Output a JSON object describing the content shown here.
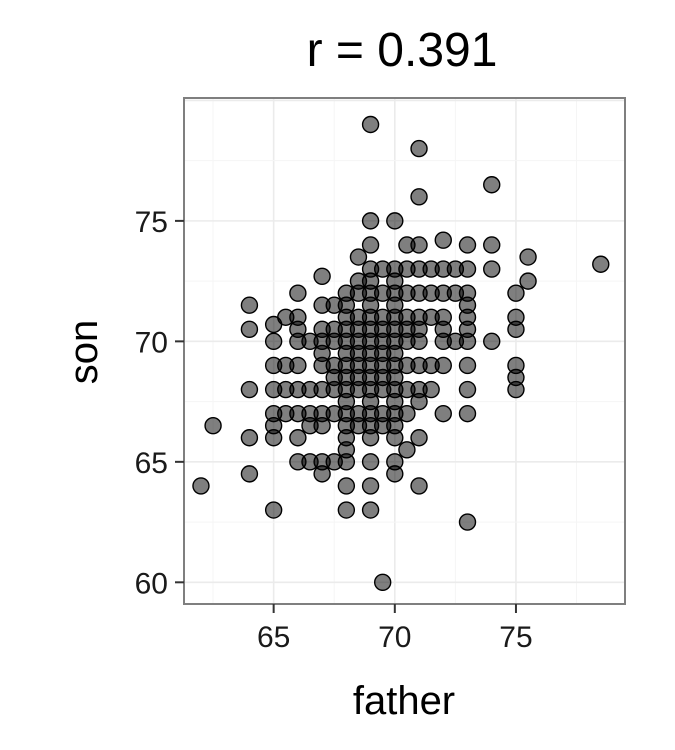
{
  "chart_data": {
    "type": "scatter",
    "title": "r = 0.391",
    "xlabel": "father",
    "ylabel": "son",
    "xlim": [
      61.3,
      79.5
    ],
    "ylim": [
      59.1,
      80.1
    ],
    "xticks": [
      65,
      70,
      75
    ],
    "yticks": [
      60,
      65,
      70,
      75
    ],
    "xtick_labels": [
      "65",
      "70",
      "75"
    ],
    "ytick_labels": [
      "60",
      "65",
      "70",
      "75"
    ],
    "grid": true,
    "point_color": "#000000",
    "point_opacity": 0.5,
    "points": [
      [
        62,
        64
      ],
      [
        62.5,
        66.5
      ],
      [
        64,
        71.5
      ],
      [
        64,
        70.5
      ],
      [
        64,
        68
      ],
      [
        64,
        66
      ],
      [
        64,
        64.5
      ],
      [
        65,
        70.7
      ],
      [
        65,
        70
      ],
      [
        65,
        69
      ],
      [
        65,
        68
      ],
      [
        65,
        67
      ],
      [
        65,
        66.5
      ],
      [
        65,
        66
      ],
      [
        65,
        63
      ],
      [
        65.5,
        71
      ],
      [
        65.5,
        69
      ],
      [
        65.5,
        68
      ],
      [
        65.5,
        67
      ],
      [
        66,
        72
      ],
      [
        66,
        71
      ],
      [
        66,
        70.5
      ],
      [
        66,
        70
      ],
      [
        66,
        69
      ],
      [
        66,
        68
      ],
      [
        66,
        67
      ],
      [
        66,
        66
      ],
      [
        66,
        65
      ],
      [
        66.5,
        70
      ],
      [
        66.5,
        68
      ],
      [
        66.5,
        67
      ],
      [
        66.5,
        66.5
      ],
      [
        66.5,
        65
      ],
      [
        67,
        72.7
      ],
      [
        67,
        71.5
      ],
      [
        67,
        70.5
      ],
      [
        67,
        70
      ],
      [
        67,
        69.5
      ],
      [
        67,
        69
      ],
      [
        67,
        68
      ],
      [
        67,
        67
      ],
      [
        67,
        66.5
      ],
      [
        67,
        65
      ],
      [
        67,
        64.5
      ],
      [
        67.5,
        71.5
      ],
      [
        67.5,
        70.5
      ],
      [
        67.5,
        70
      ],
      [
        67.5,
        69
      ],
      [
        67.5,
        68.5
      ],
      [
        67.5,
        68
      ],
      [
        67.5,
        67
      ],
      [
        67.5,
        65
      ],
      [
        68,
        72
      ],
      [
        68,
        71.5
      ],
      [
        68,
        71
      ],
      [
        68,
        70.5
      ],
      [
        68,
        70
      ],
      [
        68,
        69.5
      ],
      [
        68,
        69
      ],
      [
        68,
        68.5
      ],
      [
        68,
        68
      ],
      [
        68,
        67.5
      ],
      [
        68,
        67
      ],
      [
        68,
        66.5
      ],
      [
        68,
        66
      ],
      [
        68,
        65.5
      ],
      [
        68,
        65
      ],
      [
        68,
        64
      ],
      [
        68,
        63
      ],
      [
        68.5,
        73.5
      ],
      [
        68.5,
        72.5
      ],
      [
        68.5,
        72
      ],
      [
        68.5,
        71
      ],
      [
        68.5,
        70.5
      ],
      [
        68.5,
        70
      ],
      [
        68.5,
        69.5
      ],
      [
        68.5,
        69
      ],
      [
        68.5,
        68.5
      ],
      [
        68.5,
        68
      ],
      [
        68.5,
        67
      ],
      [
        68.5,
        66.5
      ],
      [
        69,
        79
      ],
      [
        69,
        75
      ],
      [
        69,
        74
      ],
      [
        69,
        73
      ],
      [
        69,
        72.5
      ],
      [
        69,
        72
      ],
      [
        69,
        71.5
      ],
      [
        69,
        71
      ],
      [
        69,
        70.5
      ],
      [
        69,
        70
      ],
      [
        69,
        69.5
      ],
      [
        69,
        69
      ],
      [
        69,
        68.5
      ],
      [
        69,
        68
      ],
      [
        69,
        67.5
      ],
      [
        69,
        67
      ],
      [
        69,
        66.5
      ],
      [
        69,
        66
      ],
      [
        69,
        65
      ],
      [
        69,
        64
      ],
      [
        69,
        63
      ],
      [
        69.5,
        73
      ],
      [
        69.5,
        72
      ],
      [
        69.5,
        71
      ],
      [
        69.5,
        70.5
      ],
      [
        69.5,
        70
      ],
      [
        69.5,
        69.5
      ],
      [
        69.5,
        69
      ],
      [
        69.5,
        68.5
      ],
      [
        69.5,
        68
      ],
      [
        69.5,
        67
      ],
      [
        69.5,
        66.5
      ],
      [
        69.5,
        60
      ],
      [
        70,
        75
      ],
      [
        70,
        73
      ],
      [
        70,
        72.5
      ],
      [
        70,
        72
      ],
      [
        70,
        71.5
      ],
      [
        70,
        71
      ],
      [
        70,
        70.5
      ],
      [
        70,
        70
      ],
      [
        70,
        69.5
      ],
      [
        70,
        69
      ],
      [
        70,
        68.5
      ],
      [
        70,
        68
      ],
      [
        70,
        67.5
      ],
      [
        70,
        67
      ],
      [
        70,
        66.5
      ],
      [
        70,
        66
      ],
      [
        70,
        65
      ],
      [
        70,
        64.5
      ],
      [
        70.5,
        74
      ],
      [
        70.5,
        73
      ],
      [
        70.5,
        72
      ],
      [
        70.5,
        71
      ],
      [
        70.5,
        70.5
      ],
      [
        70.5,
        70
      ],
      [
        70.5,
        69
      ],
      [
        70.5,
        68
      ],
      [
        70.5,
        67
      ],
      [
        70.5,
        65.5
      ],
      [
        71,
        78
      ],
      [
        71,
        76
      ],
      [
        71,
        74
      ],
      [
        71,
        73
      ],
      [
        71,
        72
      ],
      [
        71,
        71
      ],
      [
        71,
        70.5
      ],
      [
        71,
        70
      ],
      [
        71,
        69
      ],
      [
        71,
        68
      ],
      [
        71,
        67.5
      ],
      [
        71,
        66
      ],
      [
        71,
        64
      ],
      [
        71.5,
        73
      ],
      [
        71.5,
        72
      ],
      [
        71.5,
        71
      ],
      [
        71.5,
        69
      ],
      [
        71.5,
        68
      ],
      [
        72,
        74.2
      ],
      [
        72,
        73
      ],
      [
        72,
        72
      ],
      [
        72,
        71
      ],
      [
        72,
        70.5
      ],
      [
        72,
        70
      ],
      [
        72,
        69
      ],
      [
        72,
        67
      ],
      [
        72.5,
        73
      ],
      [
        72.5,
        72
      ],
      [
        72.5,
        70
      ],
      [
        73,
        74
      ],
      [
        73,
        73
      ],
      [
        73,
        72
      ],
      [
        73,
        71.5
      ],
      [
        73,
        71
      ],
      [
        73,
        70.5
      ],
      [
        73,
        70
      ],
      [
        73,
        69
      ],
      [
        73,
        68
      ],
      [
        73,
        67
      ],
      [
        73,
        62.5
      ],
      [
        74,
        76.5
      ],
      [
        74,
        74
      ],
      [
        74,
        73
      ],
      [
        74,
        70
      ],
      [
        75,
        72
      ],
      [
        75,
        71
      ],
      [
        75,
        70.5
      ],
      [
        75,
        69
      ],
      [
        75,
        68.5
      ],
      [
        75,
        68
      ],
      [
        75.5,
        73.5
      ],
      [
        75.5,
        72.5
      ],
      [
        78.5,
        73.2
      ]
    ]
  }
}
